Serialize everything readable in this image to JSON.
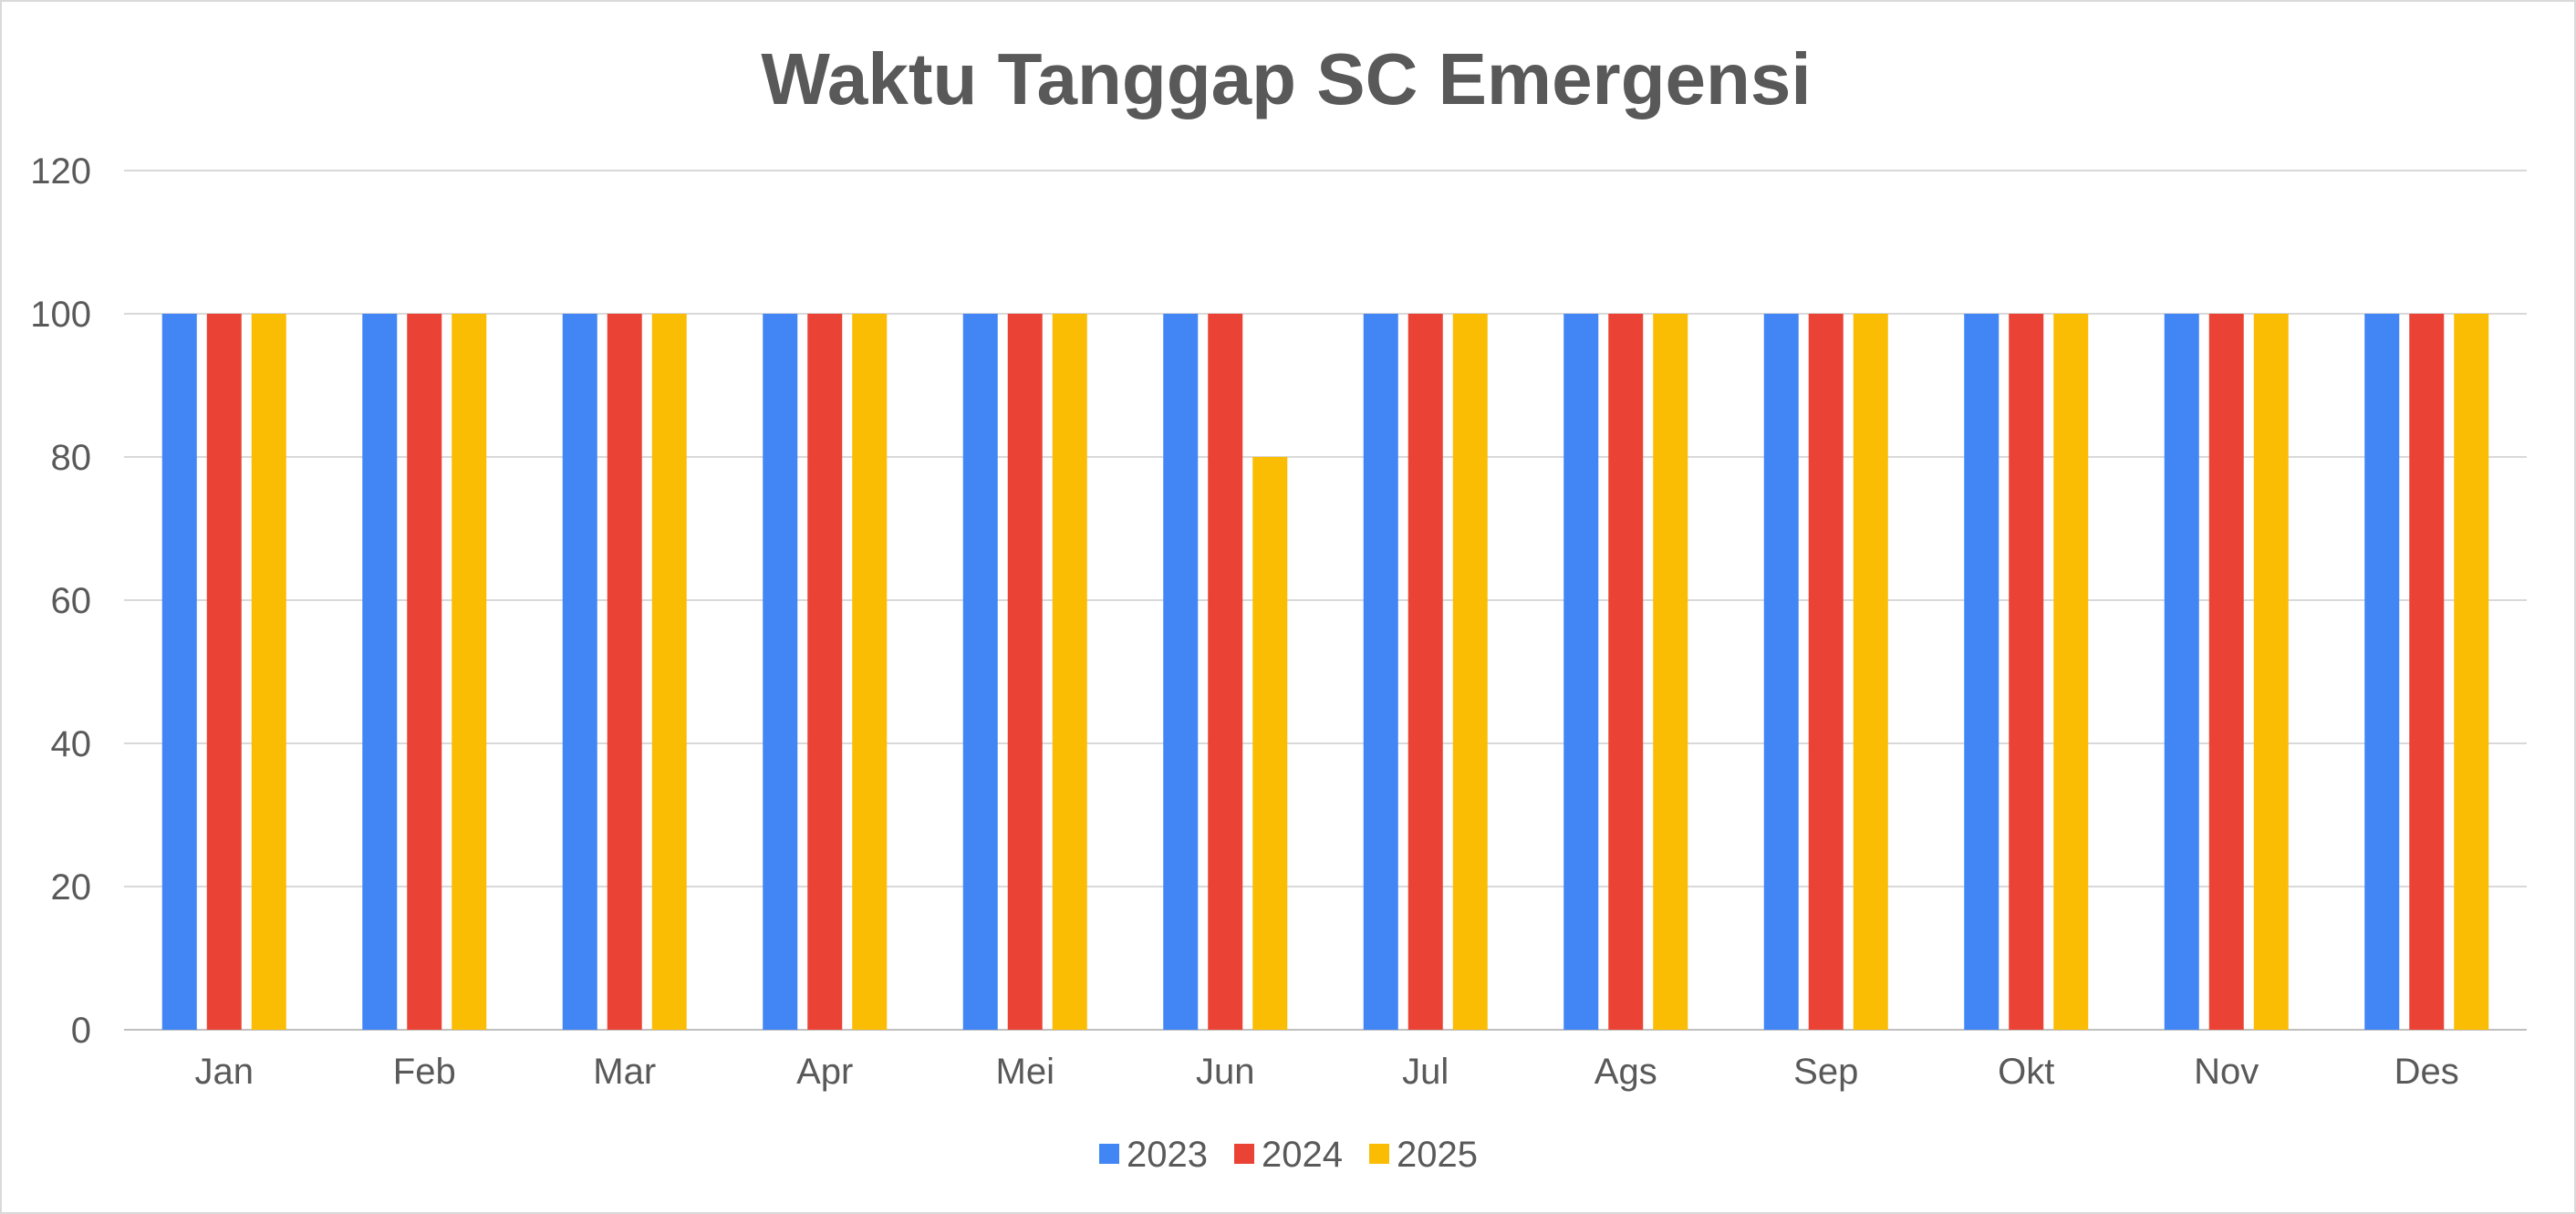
{
  "chart_data": {
    "type": "bar",
    "title": "Waktu Tanggap SC Emergensi",
    "xlabel": "",
    "ylabel": "",
    "categories": [
      "Jan",
      "Feb",
      "Mar",
      "Apr",
      "Mei",
      "Jun",
      "Jul",
      "Ags",
      "Sep",
      "Okt",
      "Nov",
      "Des"
    ],
    "series": [
      {
        "name": "2023",
        "color": "#4285F4",
        "values": [
          100,
          100,
          100,
          100,
          100,
          100,
          100,
          100,
          100,
          100,
          100,
          100
        ]
      },
      {
        "name": "2024",
        "color": "#EA4335",
        "values": [
          100,
          100,
          100,
          100,
          100,
          100,
          100,
          100,
          100,
          100,
          100,
          100
        ]
      },
      {
        "name": "2025",
        "color": "#FBBC04",
        "values": [
          100,
          100,
          100,
          100,
          100,
          80,
          100,
          100,
          100,
          100,
          100,
          100
        ]
      }
    ],
    "ylim": [
      0,
      120
    ],
    "yticks": [
      0,
      20,
      40,
      60,
      80,
      100,
      120
    ],
    "grid": true,
    "legend_position": "bottom"
  }
}
